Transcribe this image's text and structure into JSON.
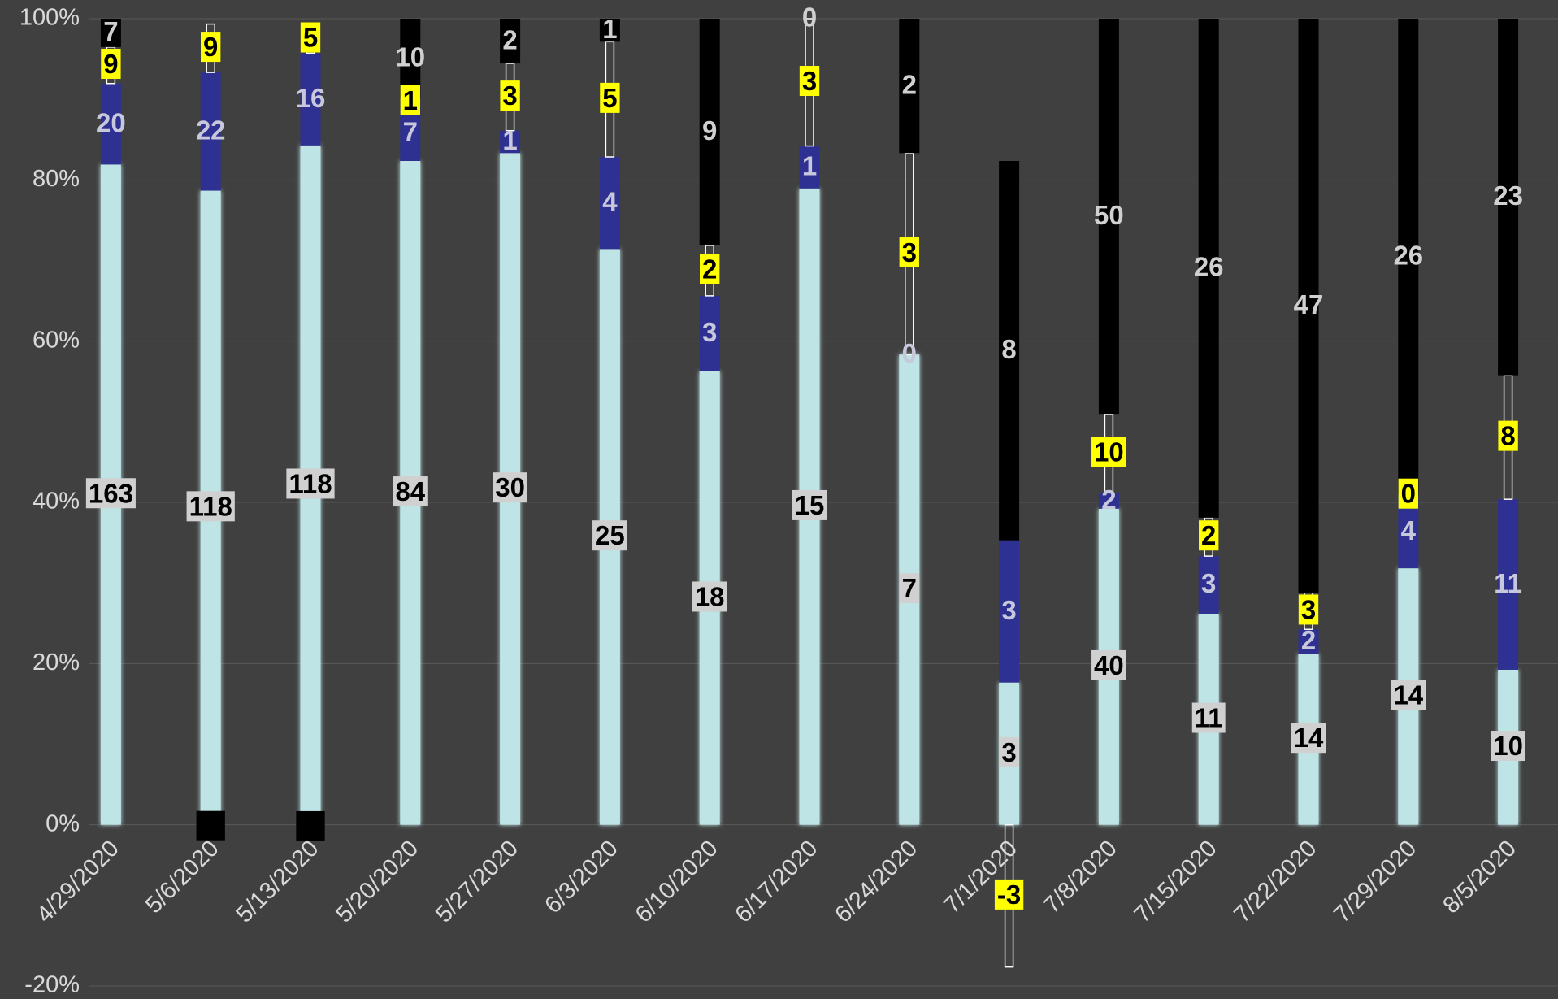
{
  "chart_data": {
    "type": "bar",
    "stacking": "percent",
    "categories": [
      "4/29/2020",
      "5/6/2020",
      "5/13/2020",
      "5/20/2020",
      "5/27/2020",
      "6/3/2020",
      "6/10/2020",
      "6/17/2020",
      "6/24/2020",
      "7/1/2020",
      "7/8/2020",
      "7/15/2020",
      "7/22/2020",
      "7/29/2020",
      "8/5/2020"
    ],
    "series": [
      {
        "color": "#bfe4e6",
        "values": [
          163,
          118,
          118,
          84,
          30,
          25,
          18,
          15,
          7,
          3,
          40,
          11,
          14,
          14,
          10
        ]
      },
      {
        "color": "#2e3192",
        "values": [
          20,
          22,
          16,
          7,
          1,
          4,
          3,
          1,
          0,
          3,
          2,
          3,
          2,
          4,
          11
        ]
      },
      {
        "color": "#ffff00",
        "values": [
          9,
          9,
          5,
          1,
          3,
          5,
          2,
          3,
          3,
          -3,
          10,
          2,
          3,
          0,
          8
        ]
      },
      {
        "color": "#000000",
        "values": [
          7,
          -1,
          -1,
          10,
          2,
          1,
          9,
          0,
          2,
          8,
          50,
          26,
          47,
          26,
          23
        ]
      }
    ],
    "ylim": [
      -20,
      100
    ],
    "yticks": [
      {
        "value": -20,
        "label": "-20%"
      },
      {
        "value": 0,
        "label": "0%"
      },
      {
        "value": 20,
        "label": "20%"
      },
      {
        "value": 40,
        "label": "40%"
      },
      {
        "value": 60,
        "label": "60%"
      },
      {
        "value": 80,
        "label": "80%"
      },
      {
        "value": 100,
        "label": "100%"
      }
    ],
    "grid": true
  }
}
